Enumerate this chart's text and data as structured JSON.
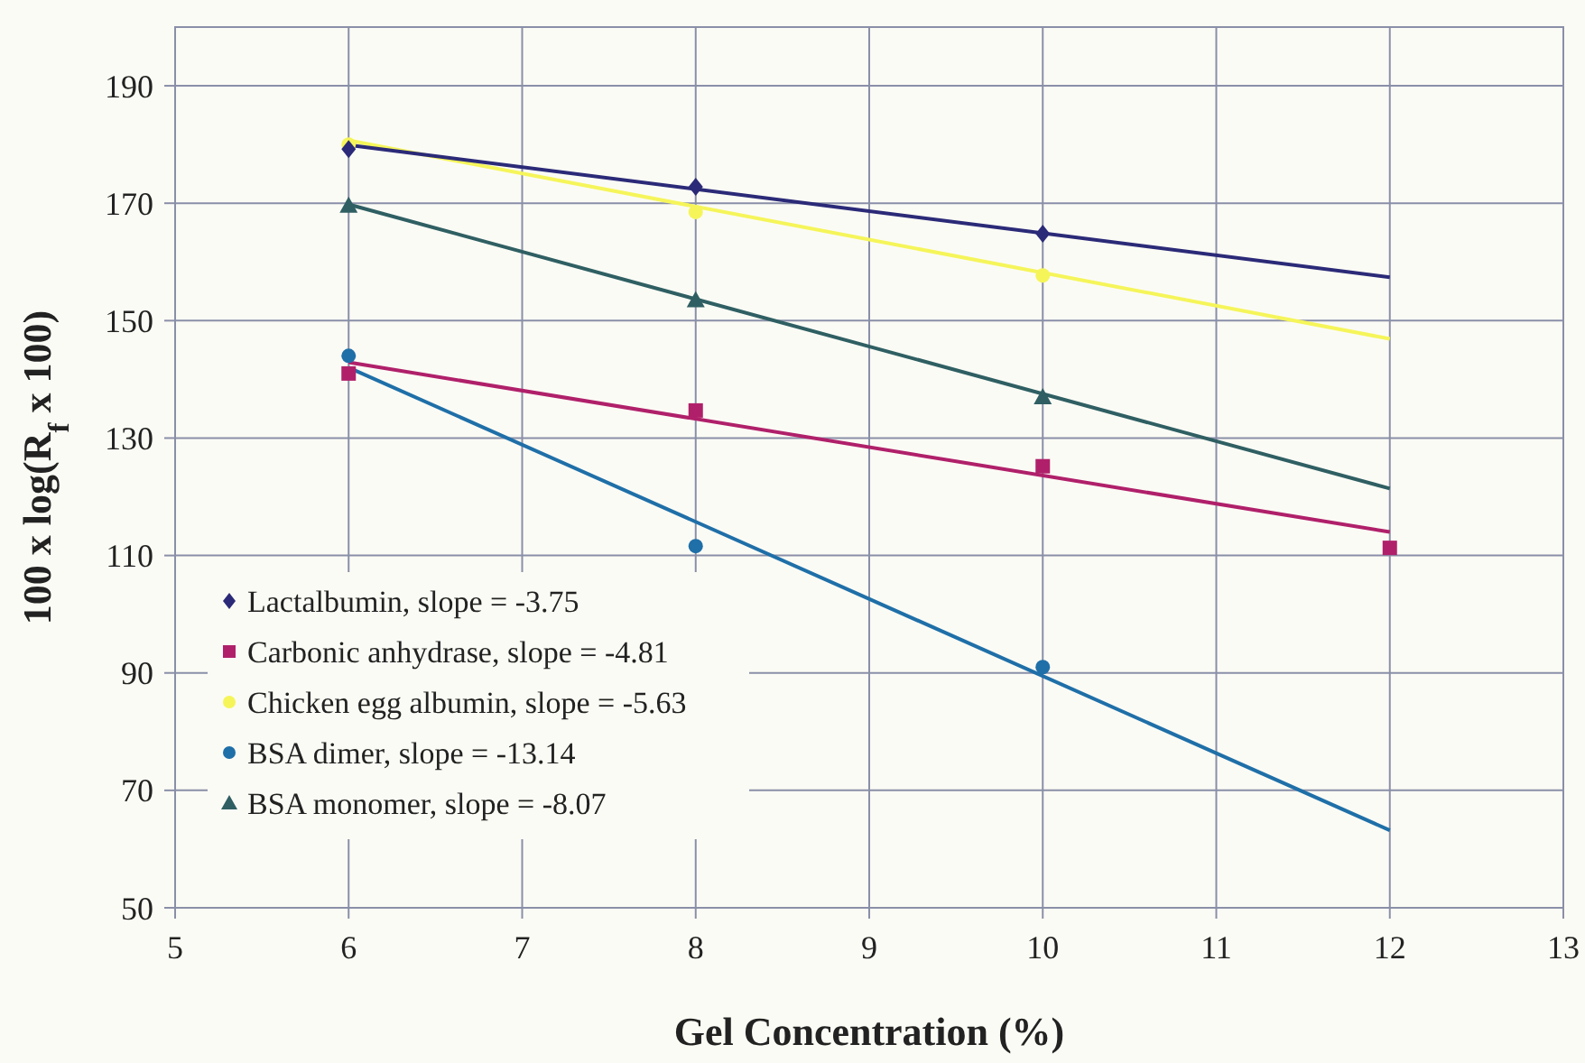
{
  "chart_data": {
    "type": "scatter",
    "xlabel": "Gel Concentration (%)",
    "ylabel": "100 x log(R$_{f}$ x 100)",
    "xlim": [
      5,
      13
    ],
    "xticks": [
      5,
      6,
      7,
      8,
      9,
      10,
      11,
      12,
      13
    ],
    "ylim": [
      50,
      200
    ],
    "yticks": [
      50,
      70,
      90,
      110,
      130,
      150,
      170,
      190
    ],
    "grid": true,
    "legend": "bottom left",
    "series": [
      {
        "name": "Lactalbumin, slope = -3.75",
        "type": "scatter",
        "marker": "diamond",
        "color": "#2b2a78",
        "x": [
          6,
          8,
          10
        ],
        "values": [
          179.2,
          172.8,
          164.8
        ]
      },
      {
        "name": "Carbonic anhydrase, slope = -4.81",
        "type": "scatter",
        "marker": "square",
        "color": "#b0206a",
        "x": [
          6,
          8,
          10,
          12
        ],
        "values": [
          141,
          134.7,
          125.2,
          111.3
        ]
      },
      {
        "name": "Chicken egg albumin, slope = -5.63",
        "type": "scatter",
        "marker": "circle",
        "color": "#f5f55a",
        "x": [
          6,
          8,
          10
        ],
        "values": [
          180,
          168.5,
          157.7
        ]
      },
      {
        "name": "BSA dimer, slope = -13.14",
        "type": "scatter",
        "marker": "circle",
        "color": "#1f6fa8",
        "x": [
          6,
          8,
          10
        ],
        "values": [
          144,
          111.6,
          91
        ]
      },
      {
        "name": "BSA monomer, slope = -8.07",
        "type": "scatter",
        "marker": "triangle",
        "color": "#2f5f63",
        "x": [
          6,
          8,
          10
        ],
        "values": [
          169.6,
          153.5,
          137
        ]
      },
      {
        "type": "line",
        "marker": "none",
        "color": "#2b2a78",
        "x": [
          6,
          12
        ],
        "values": [
          179.9,
          157.4
        ]
      },
      {
        "type": "line",
        "marker": "none",
        "color": "#b0206a",
        "x": [
          6,
          12
        ],
        "values": [
          142.9,
          114
        ]
      },
      {
        "type": "line",
        "marker": "none",
        "color": "#f5f55a",
        "x": [
          6,
          12
        ],
        "values": [
          180.7,
          146.9
        ]
      },
      {
        "type": "line",
        "marker": "none",
        "color": "#1f6fa8",
        "x": [
          6,
          12
        ],
        "values": [
          142,
          63.2
        ]
      },
      {
        "type": "line",
        "marker": "none",
        "color": "#2f5f63",
        "x": [
          6,
          12
        ],
        "values": [
          169.8,
          121.4
        ]
      }
    ]
  }
}
